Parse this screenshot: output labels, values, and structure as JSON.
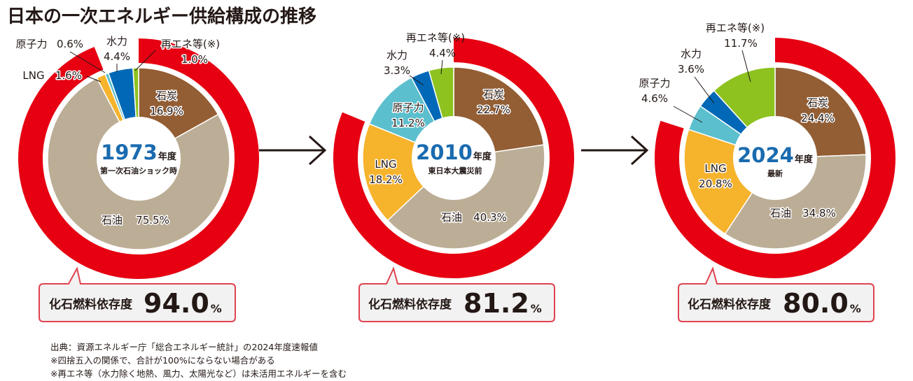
{
  "title": "日本の一次エネルギー供給構成の推移",
  "colors": {
    "fossil_ring": "#e60012",
    "coal": "#935e34",
    "oil": "#bcae96",
    "lng": "#f6b32c",
    "nuclear": "#5bbfce",
    "hydro": "#0068b7",
    "renewables": "#8dc21f",
    "year_text": "#1a6baf"
  },
  "chart_data": [
    {
      "type": "pie",
      "year": "1973",
      "year_unit": "年度",
      "subtitle": "第一次石油ショック時",
      "categories": [
        "石炭",
        "石油",
        "LNG",
        "原子力",
        "水力",
        "再エネ等(※)"
      ],
      "values": [
        16.9,
        75.5,
        1.6,
        0.6,
        4.4,
        1.0
      ],
      "labels": [
        "16.9%",
        "75.5%",
        "1.6%",
        "0.6%",
        "4.4%",
        "1.0%"
      ],
      "fossil_dependence": {
        "label": "化石燃料依存度",
        "value": "94.0",
        "unit": "%",
        "ratio": 94.0
      }
    },
    {
      "type": "pie",
      "year": "2010",
      "year_unit": "年度",
      "subtitle": "東日本大震災前",
      "categories": [
        "石炭",
        "石油",
        "LNG",
        "原子力",
        "水力",
        "再エネ等(※)"
      ],
      "values": [
        22.7,
        40.3,
        18.2,
        11.2,
        3.3,
        4.4
      ],
      "labels": [
        "22.7%",
        "40.3%",
        "18.2%",
        "11.2%",
        "3.3%",
        "4.4%"
      ],
      "fossil_dependence": {
        "label": "化石燃料依存度",
        "value": "81.2",
        "unit": "%",
        "ratio": 81.2
      }
    },
    {
      "type": "pie",
      "year": "2024",
      "year_unit": "年度",
      "subtitle": "最新",
      "categories": [
        "石炭",
        "石油",
        "LNG",
        "原子力",
        "水力",
        "再エネ等(※)"
      ],
      "values": [
        24.4,
        34.8,
        20.8,
        4.6,
        3.6,
        11.7
      ],
      "labels": [
        "24.4%",
        "34.8%",
        "20.8%",
        "4.6%",
        "3.6%",
        "11.7%"
      ],
      "fossil_dependence": {
        "label": "化石燃料依存度",
        "value": "80.0",
        "unit": "%",
        "ratio": 80.0
      }
    }
  ],
  "notes": [
    "出典：資源エネルギー庁「総合エネルギー統計」の2024年度速報値",
    "※四捨五入の関係で、合計が100%にならない場合がある",
    "※再エネ等（水力除く地熱、風力、太陽光など）は未活用エネルギーを含む"
  ]
}
